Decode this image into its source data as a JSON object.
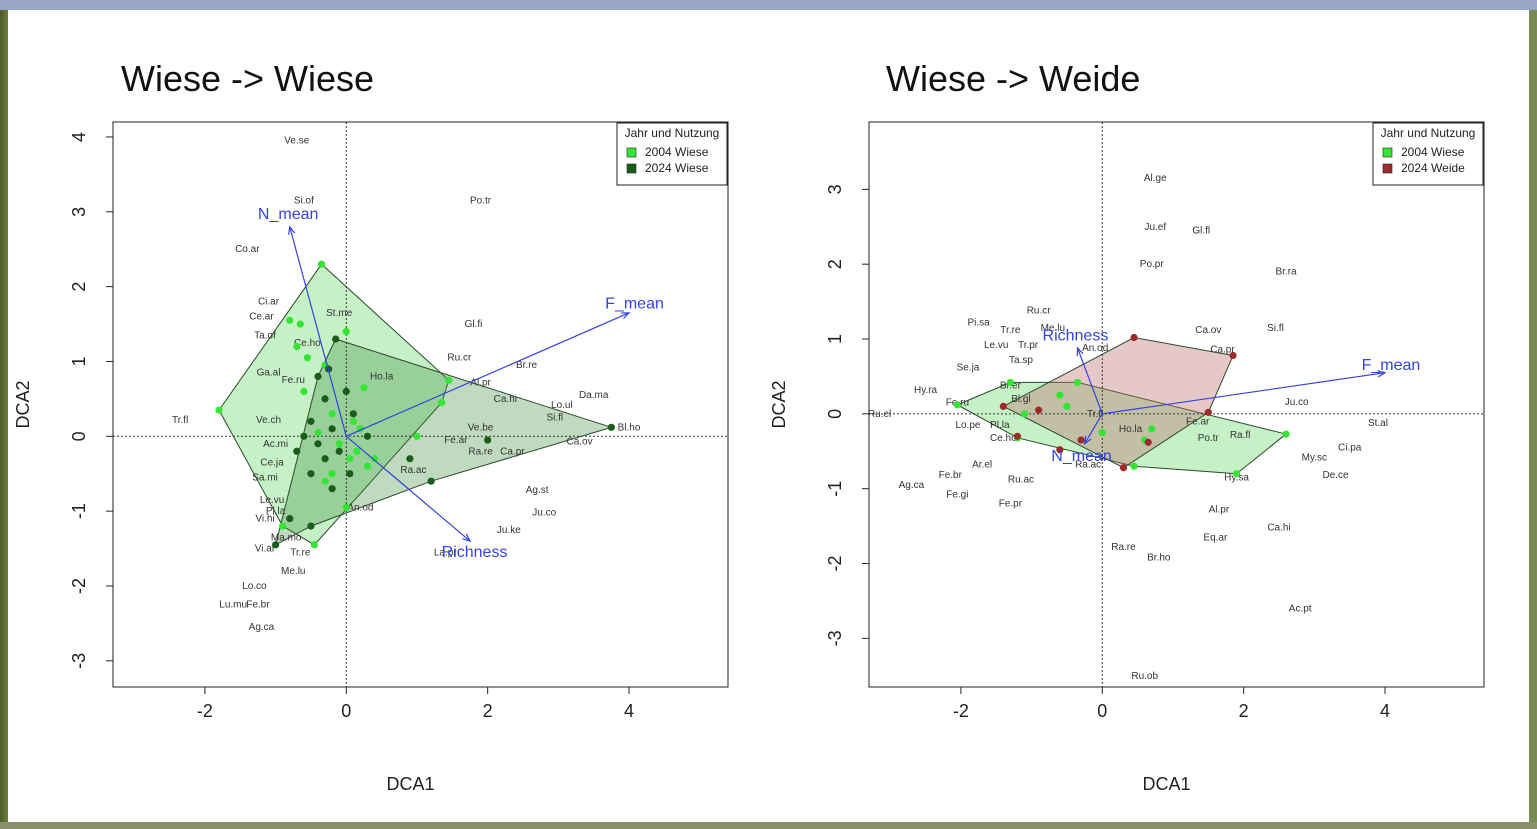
{
  "slide": {
    "left_title": "Wiese -> Wiese",
    "right_title": "Wiese -> Weide"
  },
  "chart_data": [
    {
      "type": "scatter",
      "title": "Wiese -> Wiese",
      "xlabel": "DCA1",
      "ylabel": "DCA2",
      "xlim": [
        -3.3,
        5.4
      ],
      "ylim": [
        -3.35,
        4.2
      ],
      "xticks": [
        -2,
        0,
        2,
        4
      ],
      "yticks": [
        -3,
        -2,
        -1,
        0,
        1,
        2,
        3,
        4
      ],
      "legend": {
        "title": "Jahr und Nutzung",
        "position": "top-right",
        "entries": [
          {
            "label": "2004 Wiese",
            "color": "#33e633"
          },
          {
            "label": "2024 Wiese",
            "color": "#1a5c1a"
          }
        ]
      },
      "series": [
        {
          "name": "2004 Wiese",
          "color": "#33e633",
          "hull_color": "rgba(128,224,128,0.45)",
          "hull": [
            [
              -1.8,
              0.35
            ],
            [
              -0.35,
              2.3
            ],
            [
              1.45,
              0.75
            ],
            [
              1.35,
              0.45
            ],
            [
              -0.45,
              -1.45
            ],
            [
              -0.9,
              -1.2
            ]
          ],
          "points": [
            [
              -1.8,
              0.35
            ],
            [
              -0.35,
              2.3
            ],
            [
              1.45,
              0.75
            ],
            [
              1.35,
              0.45
            ],
            [
              -0.45,
              -1.45
            ],
            [
              -0.9,
              -1.2
            ],
            [
              -0.8,
              1.55
            ],
            [
              -0.65,
              1.5
            ],
            [
              -0.7,
              1.2
            ],
            [
              -0.55,
              1.05
            ],
            [
              -0.3,
              0.95
            ],
            [
              0,
              1.4
            ],
            [
              -0.6,
              0.6
            ],
            [
              -0.2,
              0.3
            ],
            [
              0.1,
              0.2
            ],
            [
              0.2,
              0.1
            ],
            [
              -0.1,
              -0.1
            ],
            [
              0.05,
              -0.3
            ],
            [
              0.3,
              -0.4
            ],
            [
              -0.3,
              -0.6
            ],
            [
              0.0,
              -0.95
            ],
            [
              1.0,
              0.0
            ],
            [
              0.4,
              -0.3
            ],
            [
              -0.2,
              -0.5
            ],
            [
              0.15,
              -0.2
            ],
            [
              -0.4,
              0.05
            ],
            [
              0.25,
              0.65
            ]
          ]
        },
        {
          "name": "2024 Wiese",
          "color": "#1a5c1a",
          "hull_color": "rgba(60,140,60,0.32)",
          "hull": [
            [
              -0.15,
              1.3
            ],
            [
              3.75,
              0.12
            ],
            [
              1.2,
              -0.6
            ],
            [
              -0.5,
              -1.2
            ],
            [
              -1.0,
              -1.45
            ],
            [
              -0.4,
              0.8
            ]
          ],
          "points": [
            [
              -0.15,
              1.3
            ],
            [
              3.75,
              0.12
            ],
            [
              1.2,
              -0.6
            ],
            [
              -0.5,
              -1.2
            ],
            [
              -1.0,
              -1.45
            ],
            [
              -0.4,
              0.8
            ],
            [
              -0.3,
              0.5
            ],
            [
              -0.5,
              0.2
            ],
            [
              -0.6,
              0.0
            ],
            [
              -0.4,
              -0.1
            ],
            [
              -0.2,
              0.1
            ],
            [
              -0.1,
              -0.2
            ],
            [
              0.0,
              0.6
            ],
            [
              0.1,
              0.3
            ],
            [
              -0.3,
              -0.3
            ],
            [
              -0.7,
              -0.2
            ],
            [
              -0.5,
              -0.5
            ],
            [
              -0.2,
              -0.7
            ],
            [
              0.05,
              -0.5
            ],
            [
              2.0,
              -0.05
            ],
            [
              0.9,
              -0.3
            ],
            [
              -0.8,
              -1.1
            ],
            [
              -0.25,
              0.9
            ],
            [
              0.3,
              0.0
            ]
          ]
        }
      ],
      "arrows": [
        {
          "label": "N_mean",
          "x": -0.8,
          "y": 2.8
        },
        {
          "label": "F_mean",
          "x": 4.0,
          "y": 1.65
        },
        {
          "label": "Richness",
          "x": 1.75,
          "y": -1.4
        }
      ],
      "species": [
        {
          "label": "Ve.se",
          "x": -0.7,
          "y": 3.95
        },
        {
          "label": "Si.of",
          "x": -0.6,
          "y": 3.15
        },
        {
          "label": "Po.tr",
          "x": 1.9,
          "y": 3.15
        },
        {
          "label": "Co.ar",
          "x": -1.4,
          "y": 2.5
        },
        {
          "label": "Ci.ar",
          "x": -1.1,
          "y": 1.8
        },
        {
          "label": "Ce.ar",
          "x": -1.2,
          "y": 1.6
        },
        {
          "label": "St.me",
          "x": -0.1,
          "y": 1.65
        },
        {
          "label": "Ta.of",
          "x": -1.15,
          "y": 1.35
        },
        {
          "label": "Ce.ho",
          "x": -0.55,
          "y": 1.25
        },
        {
          "label": "Gl.fi",
          "x": 1.8,
          "y": 1.5
        },
        {
          "label": "Ru.cr",
          "x": 1.6,
          "y": 1.05
        },
        {
          "label": "Br.re",
          "x": 2.55,
          "y": 0.95
        },
        {
          "label": "Ga.al",
          "x": -1.1,
          "y": 0.85
        },
        {
          "label": "Fe.ru",
          "x": -0.75,
          "y": 0.75
        },
        {
          "label": "Ho.la",
          "x": 0.5,
          "y": 0.8
        },
        {
          "label": "Al.pr",
          "x": 1.9,
          "y": 0.72
        },
        {
          "label": "Ca.hi",
          "x": 2.25,
          "y": 0.5
        },
        {
          "label": "Da.ma",
          "x": 3.5,
          "y": 0.55
        },
        {
          "label": "Lo.ul",
          "x": 3.05,
          "y": 0.42
        },
        {
          "label": "Si.fl",
          "x": 2.95,
          "y": 0.25
        },
        {
          "label": "Tr.fl",
          "x": -2.35,
          "y": 0.22
        },
        {
          "label": "Ve.ch",
          "x": -1.1,
          "y": 0.22
        },
        {
          "label": "Bl.ho",
          "x": 4.0,
          "y": 0.12
        },
        {
          "label": "Ve.be",
          "x": 1.9,
          "y": 0.12
        },
        {
          "label": "Fe.ar",
          "x": 1.55,
          "y": -0.05
        },
        {
          "label": "Ca.ov",
          "x": 3.3,
          "y": -0.07
        },
        {
          "label": "Ac.mi",
          "x": -1.0,
          "y": -0.1
        },
        {
          "label": "Ra.re",
          "x": 1.9,
          "y": -0.2
        },
        {
          "label": "Ca.pr",
          "x": 2.35,
          "y": -0.2
        },
        {
          "label": "Ce.ja",
          "x": -1.05,
          "y": -0.35
        },
        {
          "label": "Ra.ac",
          "x": 0.95,
          "y": -0.45
        },
        {
          "label": "Sa.mi",
          "x": -1.15,
          "y": -0.55
        },
        {
          "label": "Ag.st",
          "x": 2.7,
          "y": -0.72
        },
        {
          "label": "Le.vu",
          "x": -1.05,
          "y": -0.85
        },
        {
          "label": "Pl.la",
          "x": -1.0,
          "y": -1.0
        },
        {
          "label": "Vi.hi",
          "x": -1.15,
          "y": -1.1
        },
        {
          "label": "Ju.co",
          "x": 2.8,
          "y": -1.02
        },
        {
          "label": "An.od",
          "x": 0.2,
          "y": -0.95
        },
        {
          "label": "Ju.ke",
          "x": 2.3,
          "y": -1.25
        },
        {
          "label": "Ma.mo",
          "x": -0.85,
          "y": -1.35
        },
        {
          "label": "Vi.ar",
          "x": -1.15,
          "y": -1.5
        },
        {
          "label": "Tr.re",
          "x": -0.65,
          "y": -1.55
        },
        {
          "label": "La.pr",
          "x": 1.4,
          "y": -1.55
        },
        {
          "label": "Me.lu",
          "x": -0.75,
          "y": -1.8
        },
        {
          "label": "Lo.co",
          "x": -1.3,
          "y": -2.0
        },
        {
          "label": "Lu.mu",
          "x": -1.6,
          "y": -2.25
        },
        {
          "label": "Fe.br",
          "x": -1.25,
          "y": -2.25
        },
        {
          "label": "Ag.ca",
          "x": -1.2,
          "y": -2.55
        }
      ]
    },
    {
      "type": "scatter",
      "title": "Wiese -> Weide",
      "xlabel": "DCA1",
      "ylabel": "DCA2",
      "xlim": [
        -3.3,
        5.4
      ],
      "ylim": [
        -3.65,
        3.9
      ],
      "xticks": [
        -2,
        0,
        2,
        4
      ],
      "yticks": [
        -3,
        -2,
        -1,
        0,
        1,
        2,
        3
      ],
      "legend": {
        "title": "Jahr und Nutzung",
        "position": "top-right",
        "entries": [
          {
            "label": "2004 Wiese",
            "color": "#33e633"
          },
          {
            "label": "2024 Weide",
            "color": "#9e2a2a"
          }
        ]
      },
      "series": [
        {
          "name": "2004 Wiese",
          "color": "#33e633",
          "hull_color": "rgba(128,224,128,0.45)",
          "hull": [
            [
              -2.05,
              0.12
            ],
            [
              -1.3,
              0.42
            ],
            [
              -0.35,
              0.42
            ],
            [
              2.6,
              -0.27
            ],
            [
              1.9,
              -0.8
            ],
            [
              0.45,
              -0.7
            ],
            [
              -1.2,
              -0.32
            ]
          ],
          "points": [
            [
              -2.05,
              0.12
            ],
            [
              -1.3,
              0.42
            ],
            [
              -0.35,
              0.42
            ],
            [
              2.6,
              -0.27
            ],
            [
              1.9,
              -0.8
            ],
            [
              0.45,
              -0.7
            ],
            [
              -1.2,
              -0.32
            ],
            [
              -0.6,
              0.25
            ],
            [
              -0.5,
              0.1
            ],
            [
              0.0,
              -0.25
            ],
            [
              0.7,
              -0.2
            ],
            [
              0.6,
              -0.35
            ],
            [
              -1.1,
              0.0
            ]
          ]
        },
        {
          "name": "2024 Weide",
          "color": "#9e2a2a",
          "hull_color": "rgba(190,110,110,0.38)",
          "hull": [
            [
              0.45,
              1.02
            ],
            [
              1.85,
              0.78
            ],
            [
              1.5,
              0.02
            ],
            [
              0.3,
              -0.72
            ],
            [
              -1.4,
              0.1
            ]
          ],
          "points": [
            [
              0.45,
              1.02
            ],
            [
              1.85,
              0.78
            ],
            [
              1.5,
              0.02
            ],
            [
              0.3,
              -0.72
            ],
            [
              -1.4,
              0.1
            ],
            [
              -0.9,
              0.05
            ],
            [
              -0.3,
              -0.35
            ],
            [
              0.65,
              -0.38
            ],
            [
              -0.6,
              -0.48
            ],
            [
              -1.2,
              -0.3
            ]
          ]
        }
      ],
      "arrows": [
        {
          "label": "Richness",
          "x": -0.35,
          "y": 0.88
        },
        {
          "label": "F_mean",
          "x": 4.0,
          "y": 0.55
        },
        {
          "label": "N_mean",
          "x": -0.25,
          "y": -0.4
        }
      ],
      "species": [
        {
          "label": "Al.ge",
          "x": 0.75,
          "y": 3.15
        },
        {
          "label": "Ju.ef",
          "x": 0.75,
          "y": 2.5
        },
        {
          "label": "Gl.fl",
          "x": 1.4,
          "y": 2.45
        },
        {
          "label": "Po.pr",
          "x": 0.7,
          "y": 2.0
        },
        {
          "label": "Br.ra",
          "x": 2.6,
          "y": 1.9
        },
        {
          "label": "Ru.cr",
          "x": -0.9,
          "y": 1.38
        },
        {
          "label": "Pi.sa",
          "x": -1.75,
          "y": 1.22
        },
        {
          "label": "Tr.re",
          "x": -1.3,
          "y": 1.12
        },
        {
          "label": "Me.lu",
          "x": -0.7,
          "y": 1.15
        },
        {
          "label": "Ca.ov",
          "x": 1.5,
          "y": 1.12
        },
        {
          "label": "Si.fl",
          "x": 2.45,
          "y": 1.15
        },
        {
          "label": "Le.vu",
          "x": -1.5,
          "y": 0.92
        },
        {
          "label": "Tr.pr",
          "x": -1.05,
          "y": 0.92
        },
        {
          "label": "An.od",
          "x": -0.1,
          "y": 0.88
        },
        {
          "label": "Ca.pr",
          "x": 1.7,
          "y": 0.86
        },
        {
          "label": "Ta.sp",
          "x": -1.15,
          "y": 0.72
        },
        {
          "label": "Se.ja",
          "x": -1.9,
          "y": 0.62
        },
        {
          "label": "Hy.ra",
          "x": -2.5,
          "y": 0.32
        },
        {
          "label": "Br.er",
          "x": -1.3,
          "y": 0.38
        },
        {
          "label": "Fe.ru",
          "x": -2.05,
          "y": 0.15
        },
        {
          "label": "Bl.gl",
          "x": -1.15,
          "y": 0.2
        },
        {
          "label": "Ju.co",
          "x": 2.75,
          "y": 0.16
        },
        {
          "label": "Ru.el",
          "x": -3.15,
          "y": 0.0
        },
        {
          "label": "Tr.fl",
          "x": -0.1,
          "y": 0.0
        },
        {
          "label": "Fe.ar",
          "x": 1.35,
          "y": -0.1
        },
        {
          "label": "St.al",
          "x": 3.9,
          "y": -0.12
        },
        {
          "label": "Lo.pe",
          "x": -1.9,
          "y": -0.15
        },
        {
          "label": "Pl.la",
          "x": -1.45,
          "y": -0.15
        },
        {
          "label": "Ho.la",
          "x": 0.4,
          "y": -0.2
        },
        {
          "label": "Ra.fl",
          "x": 1.95,
          "y": -0.28
        },
        {
          "label": "Ce.ho",
          "x": -1.4,
          "y": -0.32
        },
        {
          "label": "Po.tr",
          "x": 1.5,
          "y": -0.32
        },
        {
          "label": "Ci.pa",
          "x": 3.5,
          "y": -0.45
        },
        {
          "label": "My.sc",
          "x": 3.0,
          "y": -0.58
        },
        {
          "label": "Ra.ac",
          "x": -0.2,
          "y": -0.68
        },
        {
          "label": "Ar.el",
          "x": -1.7,
          "y": -0.68
        },
        {
          "label": "De.ce",
          "x": 3.3,
          "y": -0.82
        },
        {
          "label": "Fe.br",
          "x": -2.15,
          "y": -0.82
        },
        {
          "label": "Ru.ac",
          "x": -1.15,
          "y": -0.88
        },
        {
          "label": "Hy.sa",
          "x": 1.9,
          "y": -0.85
        },
        {
          "label": "Ag.ca",
          "x": -2.7,
          "y": -0.95
        },
        {
          "label": "Fe.gi",
          "x": -2.05,
          "y": -1.08
        },
        {
          "label": "Fe.pr",
          "x": -1.3,
          "y": -1.2
        },
        {
          "label": "Al.pr",
          "x": 1.65,
          "y": -1.28
        },
        {
          "label": "Ca.hi",
          "x": 2.5,
          "y": -1.52
        },
        {
          "label": "Eq.ar",
          "x": 1.6,
          "y": -1.65
        },
        {
          "label": "Ra.re",
          "x": 0.3,
          "y": -1.78
        },
        {
          "label": "Br.ho",
          "x": 0.8,
          "y": -1.92
        },
        {
          "label": "Ac.pt",
          "x": 2.8,
          "y": -2.6
        },
        {
          "label": "Ru.ob",
          "x": 0.6,
          "y": -3.5
        }
      ]
    }
  ]
}
